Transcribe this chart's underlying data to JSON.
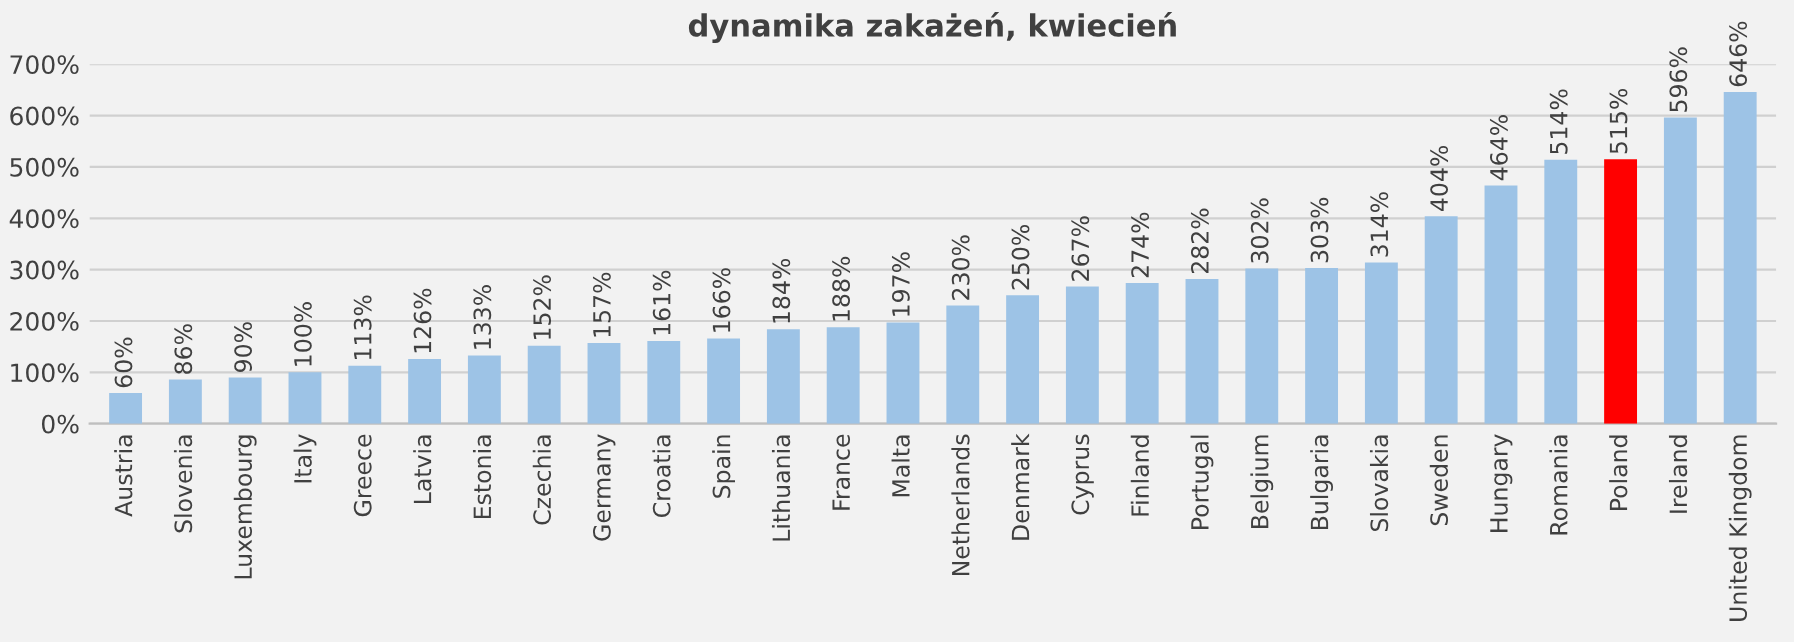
{
  "chart_data": {
    "type": "bar",
    "title": "dynamika zakażeń, kwiecień",
    "categories": [
      "Austria",
      "Slovenia",
      "Luxembourg",
      "Italy",
      "Greece",
      "Latvia",
      "Estonia",
      "Czechia",
      "Germany",
      "Croatia",
      "Spain",
      "Lithuania",
      "France",
      "Malta",
      "Netherlands",
      "Denmark",
      "Cyprus",
      "Finland",
      "Portugal",
      "Belgium",
      "Bulgaria",
      "Slovakia",
      "Sweden",
      "Hungary",
      "Romania",
      "Poland",
      "Ireland",
      "United Kingdom"
    ],
    "values": [
      60,
      86,
      90,
      100,
      113,
      126,
      133,
      152,
      157,
      161,
      166,
      184,
      188,
      197,
      230,
      250,
      267,
      274,
      282,
      302,
      303,
      314,
      404,
      464,
      514,
      515,
      596,
      646
    ],
    "value_labels": [
      "60%",
      "86%",
      "90%",
      "100%",
      "113%",
      "126%",
      "133%",
      "152%",
      "157%",
      "161%",
      "166%",
      "184%",
      "188%",
      "197%",
      "230%",
      "250%",
      "267%",
      "274%",
      "282%",
      "302%",
      "303%",
      "314%",
      "404%",
      "464%",
      "514%",
      "515%",
      "596%",
      "646%"
    ],
    "colors": [
      "#9dc3e6",
      "#9dc3e6",
      "#9dc3e6",
      "#9dc3e6",
      "#9dc3e6",
      "#9dc3e6",
      "#9dc3e6",
      "#9dc3e6",
      "#9dc3e6",
      "#9dc3e6",
      "#9dc3e6",
      "#9dc3e6",
      "#9dc3e6",
      "#9dc3e6",
      "#9dc3e6",
      "#9dc3e6",
      "#9dc3e6",
      "#9dc3e6",
      "#9dc3e6",
      "#9dc3e6",
      "#9dc3e6",
      "#9dc3e6",
      "#9dc3e6",
      "#9dc3e6",
      "#9dc3e6",
      "#ff0000",
      "#9dc3e6",
      "#9dc3e6"
    ],
    "ylim": [
      0,
      700
    ],
    "yticks": [
      {
        "value": 0,
        "label": "0%"
      },
      {
        "value": 100,
        "label": "100%"
      },
      {
        "value": 200,
        "label": "200%"
      },
      {
        "value": 300,
        "label": "300%"
      },
      {
        "value": 400,
        "label": "400%"
      },
      {
        "value": 500,
        "label": "500%"
      },
      {
        "value": 600,
        "label": "600%"
      },
      {
        "value": 700,
        "label": "700%"
      }
    ],
    "grid": "y",
    "legend": false
  }
}
